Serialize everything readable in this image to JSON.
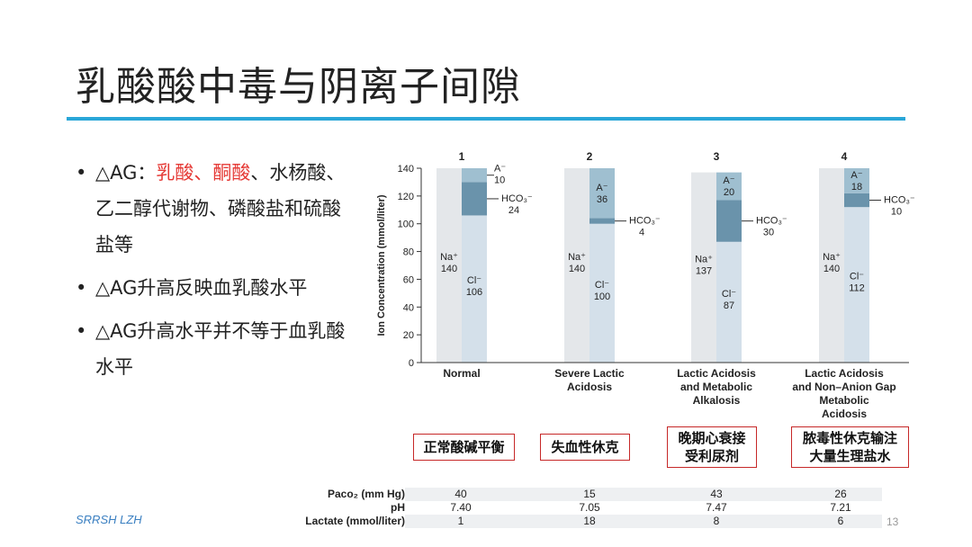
{
  "slide": {
    "title": "乳酸酸中毒与阴离子间隙",
    "footer_left": "SRRSH LZH",
    "page_number": "13"
  },
  "bullets": [
    {
      "dot": "•",
      "parts": [
        {
          "text": "△AG：",
          "color": "#222222"
        },
        {
          "text": "乳酸、酮酸",
          "color": "#e53935"
        },
        {
          "text": "、水杨酸、乙二醇代谢物、磷酸盐和硫酸盐等",
          "color": "#222222"
        }
      ]
    },
    {
      "dot": "•",
      "parts": [
        {
          "text": "△AG升高反映血乳酸水平",
          "color": "#222222"
        }
      ]
    },
    {
      "dot": "•",
      "parts": [
        {
          "text": "△AG升高水平并不等于血乳酸水平",
          "color": "#222222"
        }
      ]
    }
  ],
  "chart_data": {
    "type": "bar",
    "ylabel": "Ion Concentration (mmol/liter)",
    "ylim": [
      0,
      140
    ],
    "yticks": [
      0,
      20,
      40,
      60,
      80,
      100,
      120,
      140
    ],
    "colors": {
      "na": "#e4e7ea",
      "cl": "#d4e0ea",
      "hco3": "#6a93ab",
      "a": "#9fbfd0"
    },
    "groups": [
      {
        "number": "1",
        "label": [
          "Normal"
        ],
        "na": 140,
        "cl": 106,
        "hco3": 24,
        "a": 10,
        "na_label": [
          "Na⁺",
          "140"
        ],
        "cl_label": [
          "Cl⁻",
          "106"
        ],
        "a_label": [
          "A⁻",
          "10"
        ],
        "hco3_label": [
          "HCO₃⁻",
          "24"
        ]
      },
      {
        "number": "2",
        "label": [
          "Severe Lactic",
          "Acidosis"
        ],
        "na": 140,
        "cl": 100,
        "hco3": 4,
        "a": 36,
        "na_label": [
          "Na⁺",
          "140"
        ],
        "cl_label": [
          "Cl⁻",
          "100"
        ],
        "a_label": [
          "A⁻",
          "36"
        ],
        "hco3_label": [
          "HCO₃⁻",
          "4"
        ]
      },
      {
        "number": "3",
        "label": [
          "Lactic Acidosis",
          "and Metabolic",
          "Alkalosis"
        ],
        "na": 137,
        "cl": 87,
        "hco3": 30,
        "a": 20,
        "na_label": [
          "Na⁺",
          "137"
        ],
        "cl_label": [
          "Cl⁻",
          "87"
        ],
        "a_label": [
          "A⁻",
          "20"
        ],
        "hco3_label": [
          "HCO₃⁻",
          "30"
        ]
      },
      {
        "number": "4",
        "label": [
          "Lactic Acidosis",
          "and Non–Anion Gap",
          "Metabolic",
          "Acidosis"
        ],
        "na": 140,
        "cl": 112,
        "hco3": 10,
        "a": 18,
        "na_label": [
          "Na⁺",
          "140"
        ],
        "cl_label": [
          "Cl⁻",
          "112"
        ],
        "a_label": [
          "A⁻",
          "18"
        ],
        "hco3_label": [
          "HCO₃⁻",
          "10"
        ]
      }
    ]
  },
  "annotation_boxes": [
    {
      "lines": [
        "正常酸碱平衡"
      ]
    },
    {
      "lines": [
        "失血性休克"
      ]
    },
    {
      "lines": [
        "晚期心衰接",
        "受利尿剂"
      ]
    },
    {
      "lines": [
        "脓毒性休克输注",
        "大量生理盐水"
      ]
    }
  ],
  "table": {
    "rows": [
      {
        "label": "Paco₂ (mm Hg)",
        "values": [
          "40",
          "15",
          "43",
          "26"
        ],
        "shaded": true
      },
      {
        "label": "pH",
        "values": [
          "7.40",
          "7.05",
          "7.47",
          "7.21"
        ],
        "shaded": false
      },
      {
        "label": "Lactate (mmol/liter)",
        "values": [
          "1",
          "18",
          "8",
          "6"
        ],
        "shaded": true
      }
    ]
  }
}
